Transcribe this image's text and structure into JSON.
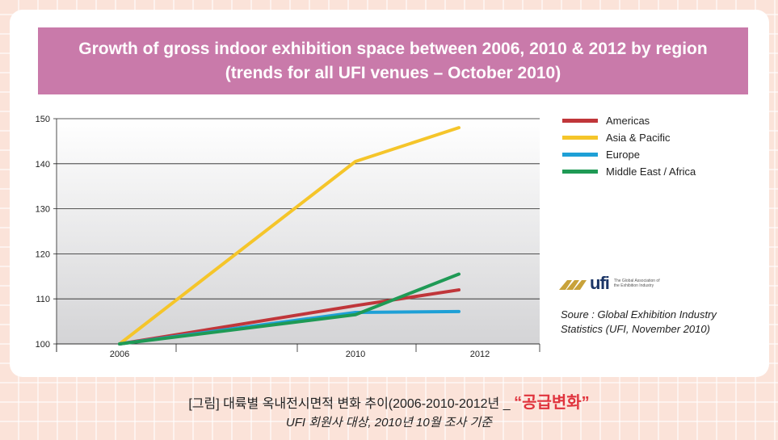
{
  "title_line1": "Growth of gross indoor exhibition space between 2006, 2010 & 2012 by region",
  "title_line2": "(trends for all UFI venues – October 2010)",
  "logo": {
    "text": "ufi",
    "tagline": "The Global Association of the Exhibition Industry",
    "icon": "ufi-chevrons-logo"
  },
  "source_line1": "Soure : Global Exhibition Industry",
  "source_line2": "Statistics (UFI, November 2010)",
  "caption": {
    "prefix": "[그림] 대륙별 옥내전시면적 변화 추이(2006-2010-2012년 _ ",
    "highlight": "“공급변화”",
    "sub": "UFI 회원사 대상, 2010년 10월 조사 기준"
  },
  "colors": {
    "title_bg": "#c97aaa",
    "americas": "#c0363a",
    "asia_pacific": "#f5c52a",
    "europe": "#1ea0d6",
    "middle_east_africa": "#1f9a55",
    "highlight": "#e0343e"
  },
  "chart_data": {
    "type": "line",
    "x": [
      2006,
      2010,
      2012
    ],
    "x_tick_labels": [
      "2006",
      "2010",
      "2012"
    ],
    "ylim": [
      100,
      150
    ],
    "y_ticks": [
      100,
      110,
      120,
      130,
      140,
      150
    ],
    "grid": true,
    "legend_position": "right",
    "series": [
      {
        "name": "Americas",
        "color": "#c0363a",
        "values": [
          100,
          108.5,
          112
        ]
      },
      {
        "name": "Asia & Pacific",
        "color": "#f5c52a",
        "values": [
          100,
          140.5,
          148
        ]
      },
      {
        "name": "Europe",
        "color": "#1ea0d6",
        "values": [
          100,
          107,
          107.2
        ]
      },
      {
        "name": "Middle East / Africa",
        "color": "#1f9a55",
        "values": [
          100,
          106.5,
          115.5
        ]
      }
    ]
  }
}
